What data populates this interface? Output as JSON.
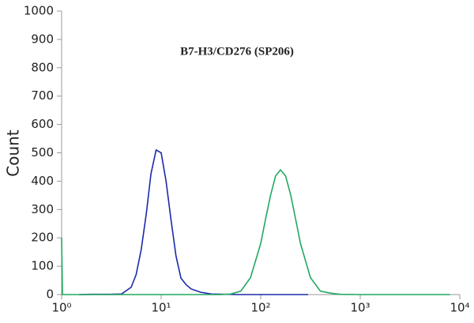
{
  "chart_data": {
    "type": "line",
    "title": "B7-H3/CD276 (SP206)",
    "y_label": "Count",
    "xscale": "log",
    "xlim": [
      1,
      10000
    ],
    "ylim": [
      0,
      1000
    ],
    "xticks": [
      {
        "value": 1,
        "label": "10⁰"
      },
      {
        "value": 10,
        "label": "10¹"
      },
      {
        "value": 100,
        "label": "10²"
      },
      {
        "value": 1000,
        "label": "10³"
      },
      {
        "value": 10000,
        "label": "10⁴"
      }
    ],
    "yticks": [
      0,
      100,
      200,
      300,
      400,
      500,
      600,
      700,
      800,
      900,
      1000
    ],
    "series": [
      {
        "color": "#1a2aa8",
        "x": [
          1.5,
          2,
          3,
          4,
          5,
          5.6,
          6.3,
          7.1,
          7.9,
          8.9,
          10,
          11.2,
          12.6,
          14.1,
          15.8,
          17.8,
          20,
          25,
          32,
          60,
          300
        ],
        "values": [
          0,
          1,
          1,
          2,
          26,
          70,
          158,
          287,
          426,
          510,
          500,
          400,
          260,
          136,
          58,
          35,
          20,
          8,
          2,
          0,
          0
        ]
      },
      {
        "color": "#22a860",
        "x": [
          1,
          1.02,
          1.1,
          5,
          40,
          50,
          63,
          79,
          100,
          112,
          126,
          141,
          158,
          178,
          200,
          224,
          251,
          316,
          398,
          501,
          631,
          1000,
          8000
        ],
        "values": [
          200,
          0,
          0,
          0,
          0,
          2,
          12,
          60,
          180,
          267,
          352,
          418,
          440,
          418,
          352,
          267,
          180,
          60,
          12,
          5,
          1,
          0,
          0
        ]
      }
    ]
  }
}
